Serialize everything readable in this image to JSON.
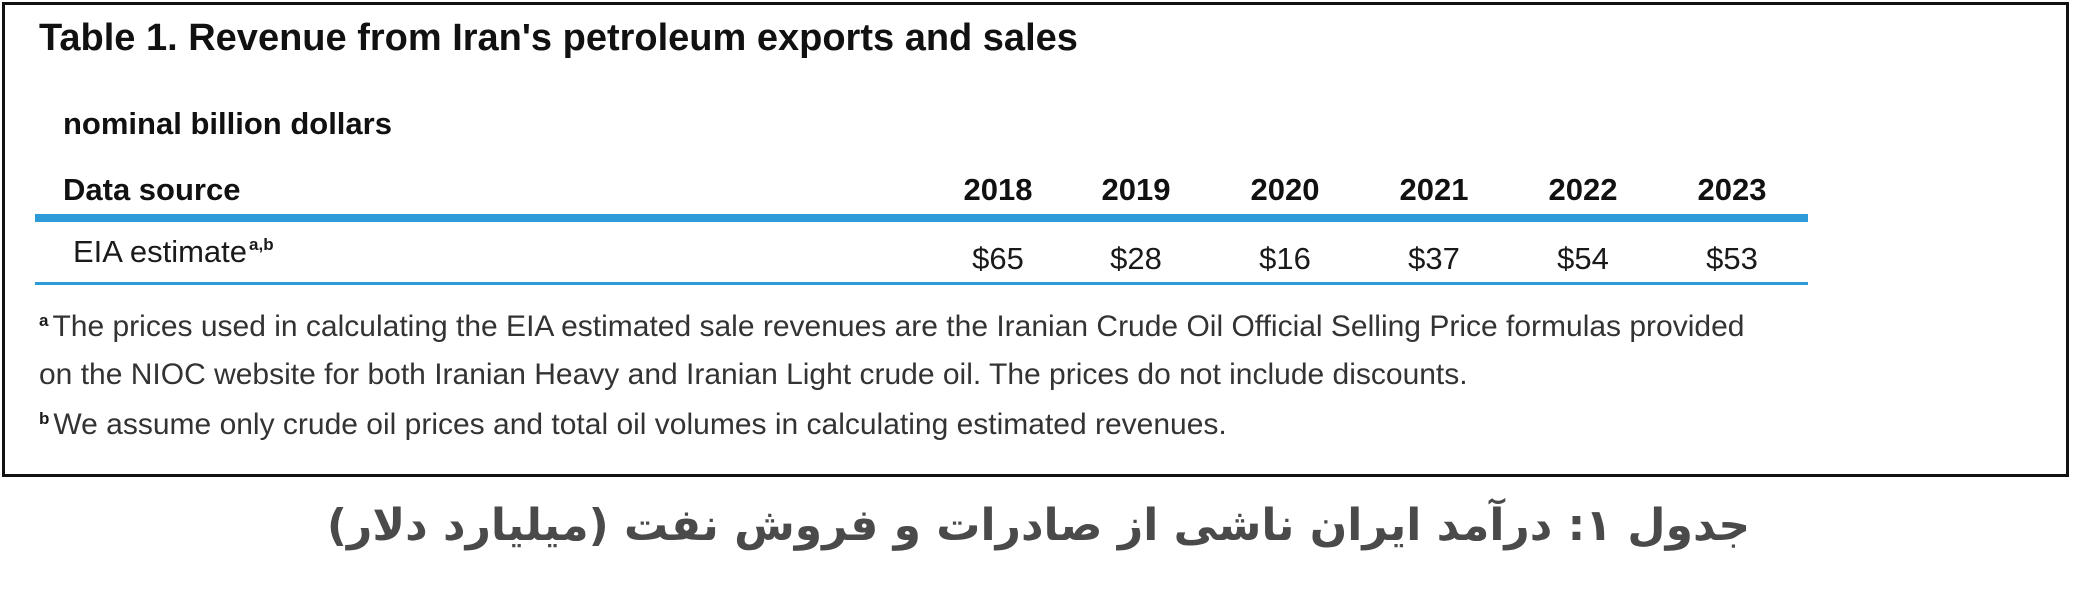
{
  "table": {
    "title": "Table 1. Revenue from Iran's petroleum exports and sales",
    "units": "nominal billion dollars",
    "header_label": "Data source",
    "years": [
      "2018",
      "2019",
      "2020",
      "2021",
      "2022",
      "2023"
    ],
    "row": {
      "label": "EIA estimate",
      "label_marks": "a,b",
      "values": [
        "$65",
        "$28",
        "$16",
        "$37",
        "$54",
        "$53"
      ]
    },
    "footnotes": {
      "a_mark": "a",
      "a_line1": "The prices used in calculating the EIA estimated sale revenues are the Iranian Crude Oil Official Selling Price formulas provided",
      "a_line2": "on the NIOC website for both Iranian Heavy and Iranian Light crude oil. The prices do not include discounts.",
      "b_mark": "b",
      "b_line": "We assume only crude oil prices and total oil volumes in calculating estimated revenues."
    },
    "colors": {
      "rule": "#2d9bd8",
      "border": "#111111",
      "caption": "#4a4a4a"
    }
  },
  "caption": "جدول ۱: درآمد ایران ناشی از صادرات و فروش نفت (میلیارد دلار)"
}
